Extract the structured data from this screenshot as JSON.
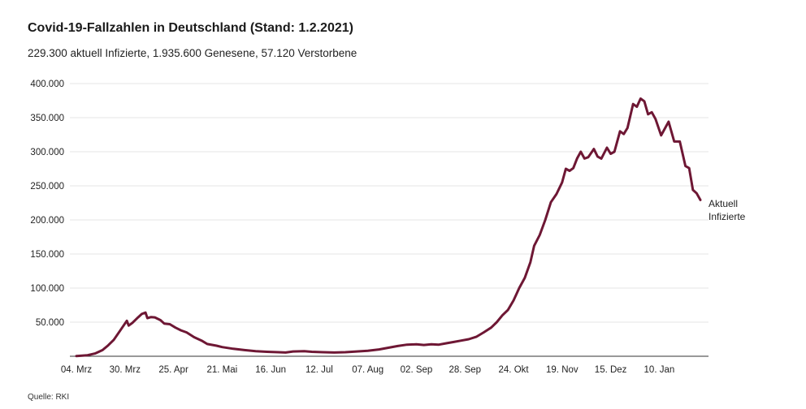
{
  "header": {
    "title": "Covid-19-Fallzahlen in Deutschland (Stand: 1.2.2021)",
    "subtitle": "229.300 aktuell Infizierte, 1.935.600 Genesene, 57.120 Verstorbene"
  },
  "footer": {
    "source": "Quelle: RKI"
  },
  "colors": {
    "line": "#6e1734",
    "grid": "#e6e6e6",
    "axis": "#333333"
  },
  "chart_data": {
    "type": "line",
    "title": "Covid-19-Fallzahlen in Deutschland (Stand: 1.2.2021)",
    "subtitle": "229.300 aktuell Infizierte, 1.935.600 Genesene, 57.120 Verstorbene",
    "xlabel": "",
    "ylabel": "",
    "ylim": [
      0,
      400000
    ],
    "grid": true,
    "y_ticks": [
      {
        "value": 50000,
        "label": "50.000"
      },
      {
        "value": 100000,
        "label": "100.000"
      },
      {
        "value": 150000,
        "label": "150.000"
      },
      {
        "value": 200000,
        "label": "200.000"
      },
      {
        "value": 250000,
        "label": "250.000"
      },
      {
        "value": 300000,
        "label": "300.000"
      },
      {
        "value": 350000,
        "label": "350.000"
      },
      {
        "value": 400000,
        "label": "400.000"
      }
    ],
    "x_ticks": [
      {
        "date": "2020-03-04",
        "label": "04. Mrz"
      },
      {
        "date": "2020-03-30",
        "label": "30. Mrz"
      },
      {
        "date": "2020-04-25",
        "label": "25. Apr"
      },
      {
        "date": "2020-05-21",
        "label": "21. Mai"
      },
      {
        "date": "2020-06-16",
        "label": "16. Jun"
      },
      {
        "date": "2020-07-12",
        "label": "12. Jul"
      },
      {
        "date": "2020-08-07",
        "label": "07. Aug"
      },
      {
        "date": "2020-09-02",
        "label": "02. Sep"
      },
      {
        "date": "2020-09-28",
        "label": "28. Sep"
      },
      {
        "date": "2020-10-24",
        "label": "24. Okt"
      },
      {
        "date": "2020-11-19",
        "label": "19. Nov"
      },
      {
        "date": "2020-12-15",
        "label": "15. Dez"
      },
      {
        "date": "2021-01-10",
        "label": "10. Jan"
      }
    ],
    "x_range": [
      "2020-03-04",
      "2021-02-01"
    ],
    "series": [
      {
        "name": "Aktuell Infizierte",
        "label_lines": [
          "Aktuell",
          "Infizierte"
        ],
        "points": [
          {
            "date": "2020-03-04",
            "y": 200
          },
          {
            "date": "2020-03-10",
            "y": 1500
          },
          {
            "date": "2020-03-14",
            "y": 4000
          },
          {
            "date": "2020-03-18",
            "y": 9000
          },
          {
            "date": "2020-03-21",
            "y": 16000
          },
          {
            "date": "2020-03-24",
            "y": 24000
          },
          {
            "date": "2020-03-27",
            "y": 36000
          },
          {
            "date": "2020-03-30",
            "y": 48000
          },
          {
            "date": "2020-03-31",
            "y": 52000
          },
          {
            "date": "2020-04-01",
            "y": 45000
          },
          {
            "date": "2020-04-03",
            "y": 49000
          },
          {
            "date": "2020-04-06",
            "y": 57000
          },
          {
            "date": "2020-04-08",
            "y": 62000
          },
          {
            "date": "2020-04-10",
            "y": 64000
          },
          {
            "date": "2020-04-11",
            "y": 56000
          },
          {
            "date": "2020-04-13",
            "y": 57500
          },
          {
            "date": "2020-04-15",
            "y": 57000
          },
          {
            "date": "2020-04-18",
            "y": 53000
          },
          {
            "date": "2020-04-20",
            "y": 48000
          },
          {
            "date": "2020-04-23",
            "y": 47000
          },
          {
            "date": "2020-04-26",
            "y": 42000
          },
          {
            "date": "2020-04-29",
            "y": 38000
          },
          {
            "date": "2020-05-02",
            "y": 35000
          },
          {
            "date": "2020-05-06",
            "y": 28000
          },
          {
            "date": "2020-05-10",
            "y": 23000
          },
          {
            "date": "2020-05-13",
            "y": 18000
          },
          {
            "date": "2020-05-18",
            "y": 15500
          },
          {
            "date": "2020-05-21",
            "y": 13500
          },
          {
            "date": "2020-05-27",
            "y": 11000
          },
          {
            "date": "2020-06-02",
            "y": 9000
          },
          {
            "date": "2020-06-08",
            "y": 7500
          },
          {
            "date": "2020-06-14",
            "y": 6500
          },
          {
            "date": "2020-06-20",
            "y": 6000
          },
          {
            "date": "2020-06-24",
            "y": 5500
          },
          {
            "date": "2020-06-28",
            "y": 7000
          },
          {
            "date": "2020-07-04",
            "y": 7500
          },
          {
            "date": "2020-07-08",
            "y": 6500
          },
          {
            "date": "2020-07-14",
            "y": 6000
          },
          {
            "date": "2020-07-20",
            "y": 5500
          },
          {
            "date": "2020-07-26",
            "y": 6000
          },
          {
            "date": "2020-08-01",
            "y": 7000
          },
          {
            "date": "2020-08-07",
            "y": 8000
          },
          {
            "date": "2020-08-13",
            "y": 10000
          },
          {
            "date": "2020-08-18",
            "y": 12500
          },
          {
            "date": "2020-08-23",
            "y": 15000
          },
          {
            "date": "2020-08-28",
            "y": 17000
          },
          {
            "date": "2020-09-02",
            "y": 17500
          },
          {
            "date": "2020-09-06",
            "y": 16500
          },
          {
            "date": "2020-09-10",
            "y": 17500
          },
          {
            "date": "2020-09-14",
            "y": 17000
          },
          {
            "date": "2020-09-18",
            "y": 19000
          },
          {
            "date": "2020-09-22",
            "y": 21000
          },
          {
            "date": "2020-09-26",
            "y": 23000
          },
          {
            "date": "2020-09-30",
            "y": 25000
          },
          {
            "date": "2020-10-04",
            "y": 28500
          },
          {
            "date": "2020-10-08",
            "y": 35000
          },
          {
            "date": "2020-10-12",
            "y": 42000
          },
          {
            "date": "2020-10-15",
            "y": 50000
          },
          {
            "date": "2020-10-18",
            "y": 60000
          },
          {
            "date": "2020-10-21",
            "y": 68000
          },
          {
            "date": "2020-10-24",
            "y": 82000
          },
          {
            "date": "2020-10-27",
            "y": 100000
          },
          {
            "date": "2020-10-30",
            "y": 115000
          },
          {
            "date": "2020-11-02",
            "y": 138000
          },
          {
            "date": "2020-11-04",
            "y": 162000
          },
          {
            "date": "2020-11-07",
            "y": 178000
          },
          {
            "date": "2020-11-10",
            "y": 200000
          },
          {
            "date": "2020-11-13",
            "y": 226000
          },
          {
            "date": "2020-11-16",
            "y": 238000
          },
          {
            "date": "2020-11-19",
            "y": 255000
          },
          {
            "date": "2020-11-21",
            "y": 275000
          },
          {
            "date": "2020-11-23",
            "y": 272000
          },
          {
            "date": "2020-11-25",
            "y": 276000
          },
          {
            "date": "2020-11-27",
            "y": 290000
          },
          {
            "date": "2020-11-29",
            "y": 300000
          },
          {
            "date": "2020-12-01",
            "y": 290000
          },
          {
            "date": "2020-12-03",
            "y": 292000
          },
          {
            "date": "2020-12-06",
            "y": 304000
          },
          {
            "date": "2020-12-08",
            "y": 293000
          },
          {
            "date": "2020-12-10",
            "y": 290000
          },
          {
            "date": "2020-12-13",
            "y": 306000
          },
          {
            "date": "2020-12-15",
            "y": 297000
          },
          {
            "date": "2020-12-17",
            "y": 300000
          },
          {
            "date": "2020-12-20",
            "y": 330000
          },
          {
            "date": "2020-12-22",
            "y": 326000
          },
          {
            "date": "2020-12-24",
            "y": 335000
          },
          {
            "date": "2020-12-27",
            "y": 370000
          },
          {
            "date": "2020-12-29",
            "y": 366000
          },
          {
            "date": "2020-12-31",
            "y": 378000
          },
          {
            "date": "2021-01-02",
            "y": 374000
          },
          {
            "date": "2021-01-04",
            "y": 355000
          },
          {
            "date": "2021-01-06",
            "y": 358000
          },
          {
            "date": "2021-01-08",
            "y": 348000
          },
          {
            "date": "2021-01-11",
            "y": 324000
          },
          {
            "date": "2021-01-13",
            "y": 334000
          },
          {
            "date": "2021-01-15",
            "y": 344000
          },
          {
            "date": "2021-01-18",
            "y": 315000
          },
          {
            "date": "2021-01-21",
            "y": 315000
          },
          {
            "date": "2021-01-24",
            "y": 279000
          },
          {
            "date": "2021-01-26",
            "y": 276000
          },
          {
            "date": "2021-01-28",
            "y": 244000
          },
          {
            "date": "2021-01-30",
            "y": 239000
          },
          {
            "date": "2021-02-01",
            "y": 229300
          }
        ]
      }
    ]
  }
}
